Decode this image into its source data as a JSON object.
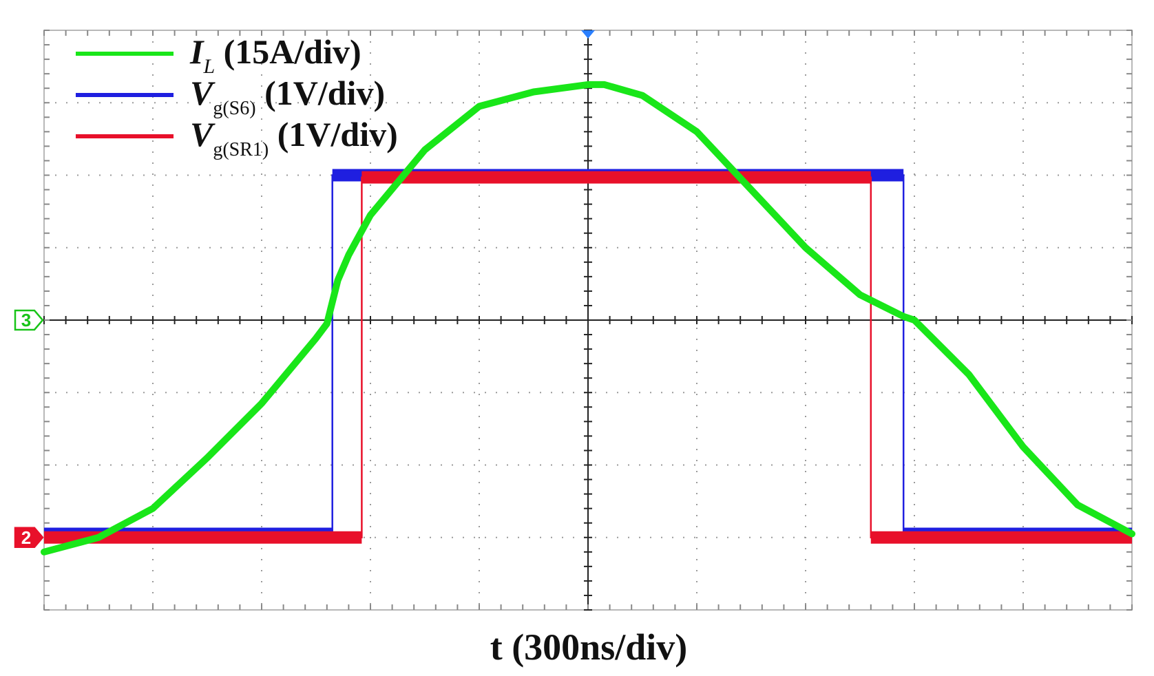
{
  "chart_data": {
    "type": "line",
    "title": "",
    "xlabel": "t (300ns/div)",
    "ylabel": "",
    "grid": true,
    "divisions": {
      "x": 10,
      "y": 8
    },
    "xlim": [
      -5,
      5
    ],
    "ylim": [
      -4,
      4
    ],
    "legend_position": "top-left",
    "channel_markers": [
      {
        "label": "3",
        "level": 0,
        "color": "#18c418"
      },
      {
        "label": "2",
        "level": -3,
        "color": "#e8102a"
      }
    ],
    "series": [
      {
        "name": "I_L (15A/div)",
        "legend": {
          "main": "I",
          "sub": "L",
          "rest": " (15A/div)"
        },
        "color": "#19e619",
        "x": [
          -5.0,
          -4.5,
          -4.0,
          -3.5,
          -3.0,
          -2.5,
          -2.4,
          -2.3,
          -2.2,
          -2.0,
          -1.5,
          -1.0,
          -0.5,
          0.0,
          0.15,
          0.5,
          1.0,
          1.5,
          2.0,
          2.5,
          2.9,
          3.0,
          3.5,
          4.0,
          4.5,
          5.0
        ],
        "y": [
          -3.2,
          -3.0,
          -2.6,
          -1.9,
          -1.15,
          -0.25,
          -0.05,
          0.55,
          0.9,
          1.45,
          2.35,
          2.95,
          3.15,
          3.25,
          3.25,
          3.1,
          2.6,
          1.8,
          1.0,
          0.35,
          0.05,
          0.0,
          -0.75,
          -1.75,
          -2.55,
          -2.95
        ]
      },
      {
        "name": "V_g(S6) (1V/div)",
        "legend": {
          "main": "V",
          "sub": "g(S6)",
          "rest": " (1V/div)"
        },
        "color": "#1f1fe0",
        "x": [
          -5.0,
          -2.35,
          -2.35,
          2.9,
          2.9,
          5.0
        ],
        "y": [
          -2.95,
          -2.95,
          2.0,
          2.0,
          -2.95,
          -2.95
        ]
      },
      {
        "name": "V_g(SR1) (1V/div)",
        "legend": {
          "main": "V",
          "sub": "g(SR1)",
          "rest": " (1V/div)"
        },
        "color": "#e8102a",
        "x": [
          -5.0,
          -2.08,
          -2.08,
          2.6,
          2.6,
          5.0
        ],
        "y": [
          -3.0,
          -3.0,
          1.97,
          1.97,
          -3.0,
          -3.0
        ]
      }
    ]
  }
}
